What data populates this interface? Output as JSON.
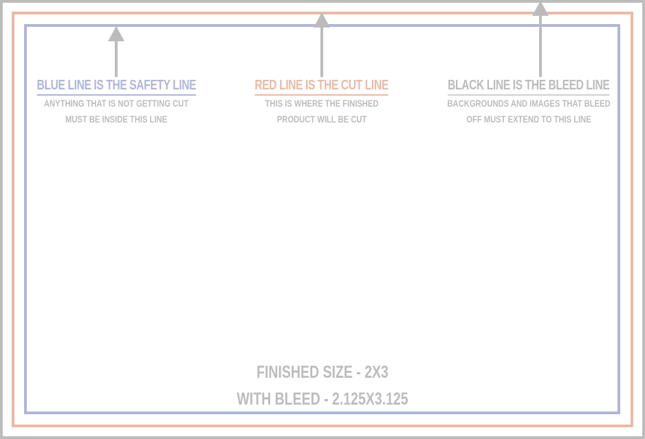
{
  "colors": {
    "safety": "#b0b5dc",
    "cut": "#ecb9a3",
    "bleed": "#bcbcbc"
  },
  "notes": [
    {
      "title": "BLUE LINE IS THE SAFETY LINE",
      "lines": [
        "ANYTHING THAT IS NOT GETTING CUT",
        "MUST BE INSIDE THIS LINE"
      ],
      "color": "#b0b5dc"
    },
    {
      "title": "RED LINE IS THE CUT LINE",
      "lines": [
        "THIS IS WHERE THE FINISHED",
        "PRODUCT WILL BE CUT"
      ],
      "color": "#ecb9a3"
    },
    {
      "title": "BLACK LINE IS THE BLEED LINE",
      "lines": [
        "BACKGROUNDS AND IMAGES THAT BLEED",
        "OFF MUST EXTEND TO THIS LINE"
      ],
      "color": "#bcbcbc"
    }
  ],
  "size": {
    "finished": "FINISHED SIZE - 2X3",
    "bleed": "WITH BLEED - 2.125X3.125"
  }
}
